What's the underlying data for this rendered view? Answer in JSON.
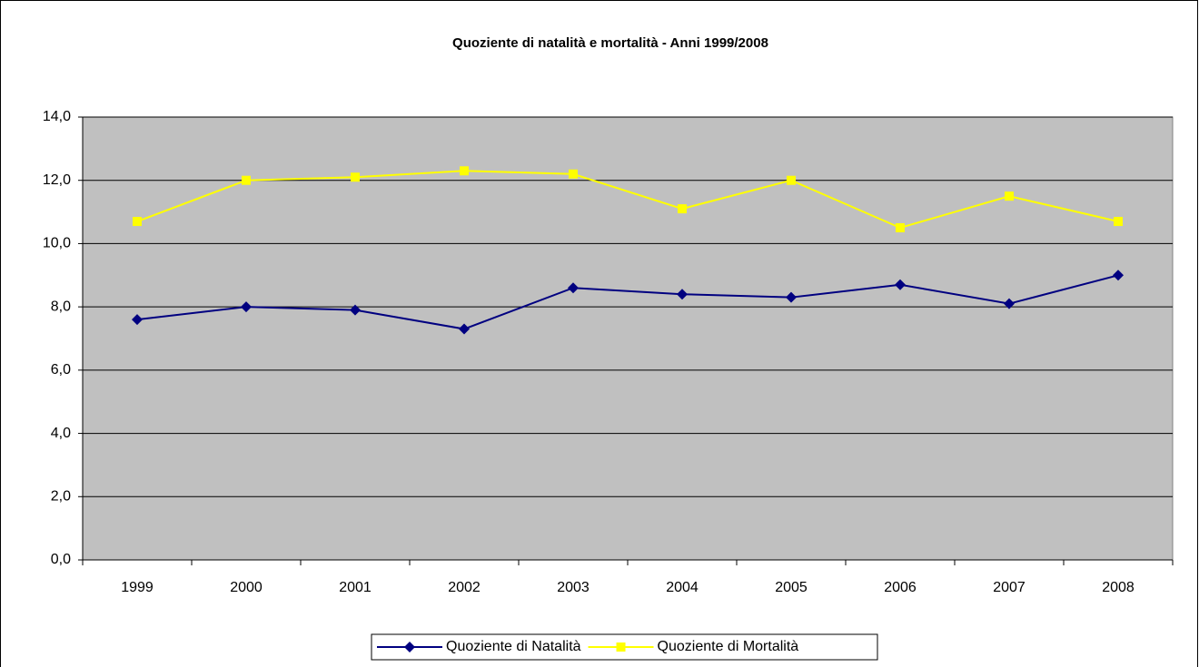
{
  "chart_data": {
    "type": "line",
    "title": "Quoziente di natalità e mortalità - Anni 1999/2008",
    "categories": [
      "1999",
      "2000",
      "2001",
      "2002",
      "2003",
      "2004",
      "2005",
      "2006",
      "2007",
      "2008"
    ],
    "series": [
      {
        "name": "Quoziente di Natalità",
        "color": "#000080",
        "marker": "diamond",
        "values": [
          7.6,
          8.0,
          7.9,
          7.3,
          8.6,
          8.4,
          8.3,
          8.7,
          8.1,
          9.0
        ]
      },
      {
        "name": "Quoziente di Mortalità",
        "color": "#ffff00",
        "marker": "square",
        "values": [
          10.7,
          12.0,
          12.1,
          12.3,
          12.2,
          11.1,
          12.0,
          10.5,
          11.5,
          10.7
        ]
      }
    ],
    "ylim": [
      0,
      14
    ],
    "yticks": [
      {
        "value": 0,
        "label": "0,0"
      },
      {
        "value": 2,
        "label": "2,0"
      },
      {
        "value": 4,
        "label": "4,0"
      },
      {
        "value": 6,
        "label": "6,0"
      },
      {
        "value": 8,
        "label": "8,0"
      },
      {
        "value": 10,
        "label": "10,0"
      },
      {
        "value": 12,
        "label": "12,0"
      },
      {
        "value": 14,
        "label": "14,0"
      }
    ],
    "grid": true,
    "legend": "bottom",
    "plot_background": "#c0c0c0"
  }
}
